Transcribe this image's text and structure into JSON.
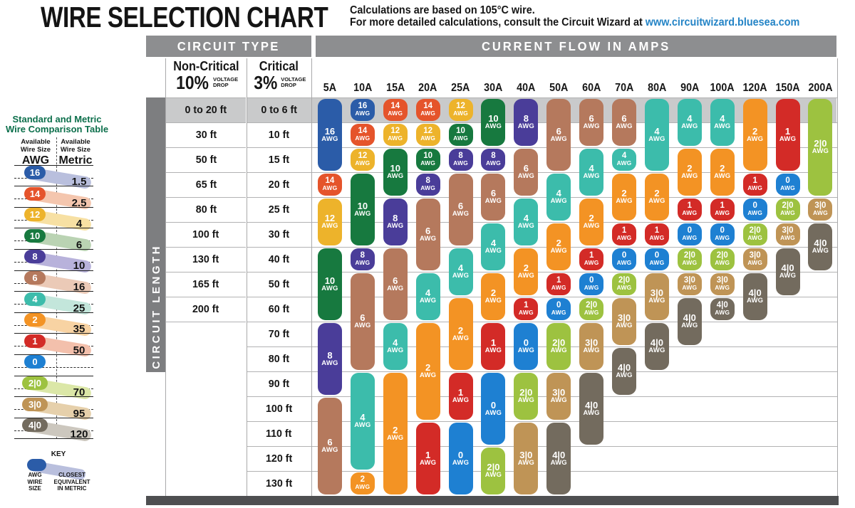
{
  "header": {
    "title": "WIRE SELECTION CHART",
    "note_line1": "Calculations are based on 105°C wire.",
    "note_line2": "For more detailed calculations, consult the Circuit Wizard at",
    "note_link": "www.circuitwizard.bluesea.com",
    "link_color": "#2484c6"
  },
  "table_chrome": {
    "circuit_type_label": "CIRCUIT TYPE",
    "current_flow_label": "CURRENT FLOW IN AMPS",
    "non_critical_label": "Non-Critical",
    "non_critical_drop": "10%",
    "critical_label": "Critical",
    "critical_drop": "3%",
    "voltage_drop": [
      "VOLTAGE",
      "DROP"
    ],
    "circuit_length_label": "CIRCUIT LENGTH",
    "pill_unit": "AWG"
  },
  "wire_colors": {
    "16": "#2b5ca8",
    "14": "#e5542b",
    "12": "#edb32b",
    "10": "#17793f",
    "8": "#4a3d99",
    "6": "#b5795d",
    "4": "#3cbcab",
    "2": "#f39324",
    "1": "#d32b27",
    "0": "#1e80d2",
    "2|0": "#9dc240",
    "3|0": "#bf9456",
    "4|0": "#736b5e"
  },
  "chart_data": {
    "type": "table",
    "title": "WIRE SELECTION CHART",
    "x_axis_label": "CURRENT FLOW IN AMPS",
    "y_axis_label": "CIRCUIT LENGTH",
    "columns": [
      "5A",
      "10A",
      "15A",
      "20A",
      "25A",
      "30A",
      "40A",
      "50A",
      "60A",
      "70A",
      "80A",
      "90A",
      "100A",
      "120A",
      "150A",
      "200A"
    ],
    "rows_non_critical_10pct": [
      "0 to 20 ft",
      "30 ft",
      "50 ft",
      "65 ft",
      "80 ft",
      "100 ft",
      "130 ft",
      "165 ft",
      "200 ft",
      "",
      "",
      "",
      "",
      "",
      "",
      ""
    ],
    "rows_critical_3pct": [
      "0 to 6 ft",
      "10 ft",
      "15 ft",
      "20 ft",
      "25 ft",
      "30 ft",
      "40 ft",
      "50 ft",
      "60 ft",
      "70 ft",
      "80 ft",
      "90 ft",
      "100 ft",
      "110 ft",
      "120 ft",
      "130 ft"
    ],
    "first_row_highlighted": true,
    "wire_gauge_segments": {
      "5A": [
        {
          "awg": "16",
          "from": 1,
          "to": 3
        },
        {
          "awg": "14",
          "from": 4,
          "to": 4
        },
        {
          "awg": "12",
          "from": 5,
          "to": 6
        },
        {
          "awg": "10",
          "from": 7,
          "to": 9
        },
        {
          "awg": "8",
          "from": 10,
          "to": 12
        },
        {
          "awg": "6",
          "from": 13,
          "to": 16
        }
      ],
      "10A": [
        {
          "awg": "16",
          "from": 1,
          "to": 1
        },
        {
          "awg": "14",
          "from": 2,
          "to": 2
        },
        {
          "awg": "12",
          "from": 3,
          "to": 3
        },
        {
          "awg": "10",
          "from": 4,
          "to": 6
        },
        {
          "awg": "8",
          "from": 7,
          "to": 7
        },
        {
          "awg": "6",
          "from": 8,
          "to": 11
        },
        {
          "awg": "4",
          "from": 12,
          "to": 15
        },
        {
          "awg": "2",
          "from": 16,
          "to": 16
        }
      ],
      "15A": [
        {
          "awg": "14",
          "from": 1,
          "to": 1
        },
        {
          "awg": "12",
          "from": 2,
          "to": 2
        },
        {
          "awg": "10",
          "from": 3,
          "to": 4
        },
        {
          "awg": "8",
          "from": 5,
          "to": 6
        },
        {
          "awg": "6",
          "from": 7,
          "to": 9
        },
        {
          "awg": "4",
          "from": 10,
          "to": 11
        },
        {
          "awg": "2",
          "from": 12,
          "to": 16
        }
      ],
      "20A": [
        {
          "awg": "14",
          "from": 1,
          "to": 1
        },
        {
          "awg": "12",
          "from": 2,
          "to": 2
        },
        {
          "awg": "10",
          "from": 3,
          "to": 3
        },
        {
          "awg": "8",
          "from": 4,
          "to": 4
        },
        {
          "awg": "6",
          "from": 5,
          "to": 7
        },
        {
          "awg": "4",
          "from": 8,
          "to": 9
        },
        {
          "awg": "2",
          "from": 10,
          "to": 13
        },
        {
          "awg": "1",
          "from": 14,
          "to": 16
        }
      ],
      "25A": [
        {
          "awg": "12",
          "from": 1,
          "to": 1
        },
        {
          "awg": "10",
          "from": 2,
          "to": 2
        },
        {
          "awg": "8",
          "from": 3,
          "to": 3
        },
        {
          "awg": "6",
          "from": 4,
          "to": 6
        },
        {
          "awg": "4",
          "from": 7,
          "to": 8
        },
        {
          "awg": "2",
          "from": 9,
          "to": 11
        },
        {
          "awg": "1",
          "from": 12,
          "to": 13
        },
        {
          "awg": "0",
          "from": 14,
          "to": 16
        }
      ],
      "30A": [
        {
          "awg": "10",
          "from": 1,
          "to": 2
        },
        {
          "awg": "8",
          "from": 3,
          "to": 3
        },
        {
          "awg": "6",
          "from": 4,
          "to": 5
        },
        {
          "awg": "4",
          "from": 6,
          "to": 7
        },
        {
          "awg": "2",
          "from": 8,
          "to": 9
        },
        {
          "awg": "1",
          "from": 10,
          "to": 11
        },
        {
          "awg": "0",
          "from": 12,
          "to": 14
        },
        {
          "awg": "2|0",
          "from": 15,
          "to": 16
        }
      ],
      "40A": [
        {
          "awg": "8",
          "from": 1,
          "to": 2
        },
        {
          "awg": "6",
          "from": 3,
          "to": 4
        },
        {
          "awg": "4",
          "from": 5,
          "to": 6
        },
        {
          "awg": "2",
          "from": 7,
          "to": 8
        },
        {
          "awg": "1",
          "from": 9,
          "to": 9
        },
        {
          "awg": "0",
          "from": 10,
          "to": 11
        },
        {
          "awg": "2|0",
          "from": 12,
          "to": 13
        },
        {
          "awg": "3|0",
          "from": 14,
          "to": 16
        }
      ],
      "50A": [
        {
          "awg": "6",
          "from": 1,
          "to": 3
        },
        {
          "awg": "4",
          "from": 4,
          "to": 5
        },
        {
          "awg": "2",
          "from": 6,
          "to": 7
        },
        {
          "awg": "1",
          "from": 8,
          "to": 8
        },
        {
          "awg": "0",
          "from": 9,
          "to": 9
        },
        {
          "awg": "2|0",
          "from": 10,
          "to": 11
        },
        {
          "awg": "3|0",
          "from": 12,
          "to": 13
        },
        {
          "awg": "4|0",
          "from": 14,
          "to": 16
        }
      ],
      "60A": [
        {
          "awg": "6",
          "from": 1,
          "to": 2
        },
        {
          "awg": "4",
          "from": 3,
          "to": 4
        },
        {
          "awg": "2",
          "from": 5,
          "to": 6
        },
        {
          "awg": "1",
          "from": 7,
          "to": 7
        },
        {
          "awg": "0",
          "from": 8,
          "to": 8
        },
        {
          "awg": "2|0",
          "from": 9,
          "to": 9
        },
        {
          "awg": "3|0",
          "from": 10,
          "to": 11
        },
        {
          "awg": "4|0",
          "from": 12,
          "to": 14
        }
      ],
      "70A": [
        {
          "awg": "6",
          "from": 1,
          "to": 2
        },
        {
          "awg": "4",
          "from": 3,
          "to": 3
        },
        {
          "awg": "2",
          "from": 4,
          "to": 5
        },
        {
          "awg": "1",
          "from": 6,
          "to": 6
        },
        {
          "awg": "0",
          "from": 7,
          "to": 7
        },
        {
          "awg": "2|0",
          "from": 8,
          "to": 8
        },
        {
          "awg": "3|0",
          "from": 9,
          "to": 10
        },
        {
          "awg": "4|0",
          "from": 11,
          "to": 12
        }
      ],
      "80A": [
        {
          "awg": "4",
          "from": 1,
          "to": 3
        },
        {
          "awg": "2",
          "from": 4,
          "to": 5
        },
        {
          "awg": "1",
          "from": 6,
          "to": 6
        },
        {
          "awg": "0",
          "from": 7,
          "to": 7
        },
        {
          "awg": "3|0",
          "from": 8,
          "to": 9
        },
        {
          "awg": "4|0",
          "from": 10,
          "to": 11
        }
      ],
      "90A": [
        {
          "awg": "4",
          "from": 1,
          "to": 2
        },
        {
          "awg": "2",
          "from": 3,
          "to": 4
        },
        {
          "awg": "1",
          "from": 5,
          "to": 5
        },
        {
          "awg": "0",
          "from": 6,
          "to": 6
        },
        {
          "awg": "2|0",
          "from": 7,
          "to": 7
        },
        {
          "awg": "3|0",
          "from": 8,
          "to": 8
        },
        {
          "awg": "4|0",
          "from": 9,
          "to": 10
        }
      ],
      "100A": [
        {
          "awg": "4",
          "from": 1,
          "to": 2
        },
        {
          "awg": "2",
          "from": 3,
          "to": 4
        },
        {
          "awg": "1",
          "from": 5,
          "to": 5
        },
        {
          "awg": "0",
          "from": 6,
          "to": 6
        },
        {
          "awg": "2|0",
          "from": 7,
          "to": 7
        },
        {
          "awg": "3|0",
          "from": 8,
          "to": 8
        },
        {
          "awg": "4|0",
          "from": 9,
          "to": 9
        }
      ],
      "120A": [
        {
          "awg": "2",
          "from": 1,
          "to": 3
        },
        {
          "awg": "1",
          "from": 4,
          "to": 4
        },
        {
          "awg": "0",
          "from": 5,
          "to": 5
        },
        {
          "awg": "2|0",
          "from": 6,
          "to": 6
        },
        {
          "awg": "3|0",
          "from": 7,
          "to": 7
        },
        {
          "awg": "4|0",
          "from": 8,
          "to": 9
        }
      ],
      "150A": [
        {
          "awg": "1",
          "from": 1,
          "to": 3
        },
        {
          "awg": "0",
          "from": 4,
          "to": 4
        },
        {
          "awg": "2|0",
          "from": 5,
          "to": 5
        },
        {
          "awg": "3|0",
          "from": 6,
          "to": 6
        },
        {
          "awg": "4|0",
          "from": 7,
          "to": 8
        }
      ],
      "200A": [
        {
          "awg": "2|0",
          "from": 1,
          "to": 4
        },
        {
          "awg": "3|0",
          "from": 5,
          "to": 5
        },
        {
          "awg": "4|0",
          "from": 6,
          "to": 7
        }
      ]
    }
  },
  "comparison": {
    "title_line1": "Standard and Metric",
    "title_line2": "Wire Comparison Table",
    "col_header_lines": [
      "Available",
      "Wire Size"
    ],
    "unit_col1": "AWG",
    "unit_col2": "Metric",
    "rows": [
      {
        "awg": "16",
        "metric": "1.5",
        "tint": "#b9bfdd"
      },
      {
        "awg": "14",
        "metric": "2.5",
        "tint": "#f4c6ae"
      },
      {
        "awg": "12",
        "metric": "4",
        "tint": "#f7e0a3"
      },
      {
        "awg": "10",
        "metric": "6",
        "tint": "#bad3b3"
      },
      {
        "awg": "8",
        "metric": "10",
        "tint": "#b8b2db"
      },
      {
        "awg": "6",
        "metric": "16",
        "tint": "#ebcab7"
      },
      {
        "awg": "4",
        "metric": "25",
        "tint": "#c3e6db"
      },
      {
        "awg": "2",
        "metric": "35",
        "tint": "#f8d3a3"
      },
      {
        "awg": "1",
        "metric": "50",
        "tint": "#f3c0ac"
      },
      {
        "awg": "0",
        "metric": "",
        "tint": ""
      },
      {
        "awg": "2|0",
        "metric": "70",
        "tint": "#dbe7a7"
      },
      {
        "awg": "3|0",
        "metric": "95",
        "tint": "#e6d0ab"
      },
      {
        "awg": "4|0",
        "metric": "120",
        "tint": "#ccc7be"
      }
    ],
    "key": {
      "title": "KEY",
      "pill_color": "#2b5ca8",
      "tint": "#b9bfdd",
      "left_label": [
        "AWG",
        "WIRE",
        "SIZE"
      ],
      "right_label": [
        "CLOSEST",
        "EQUIVALENT",
        "IN METRIC"
      ]
    }
  }
}
